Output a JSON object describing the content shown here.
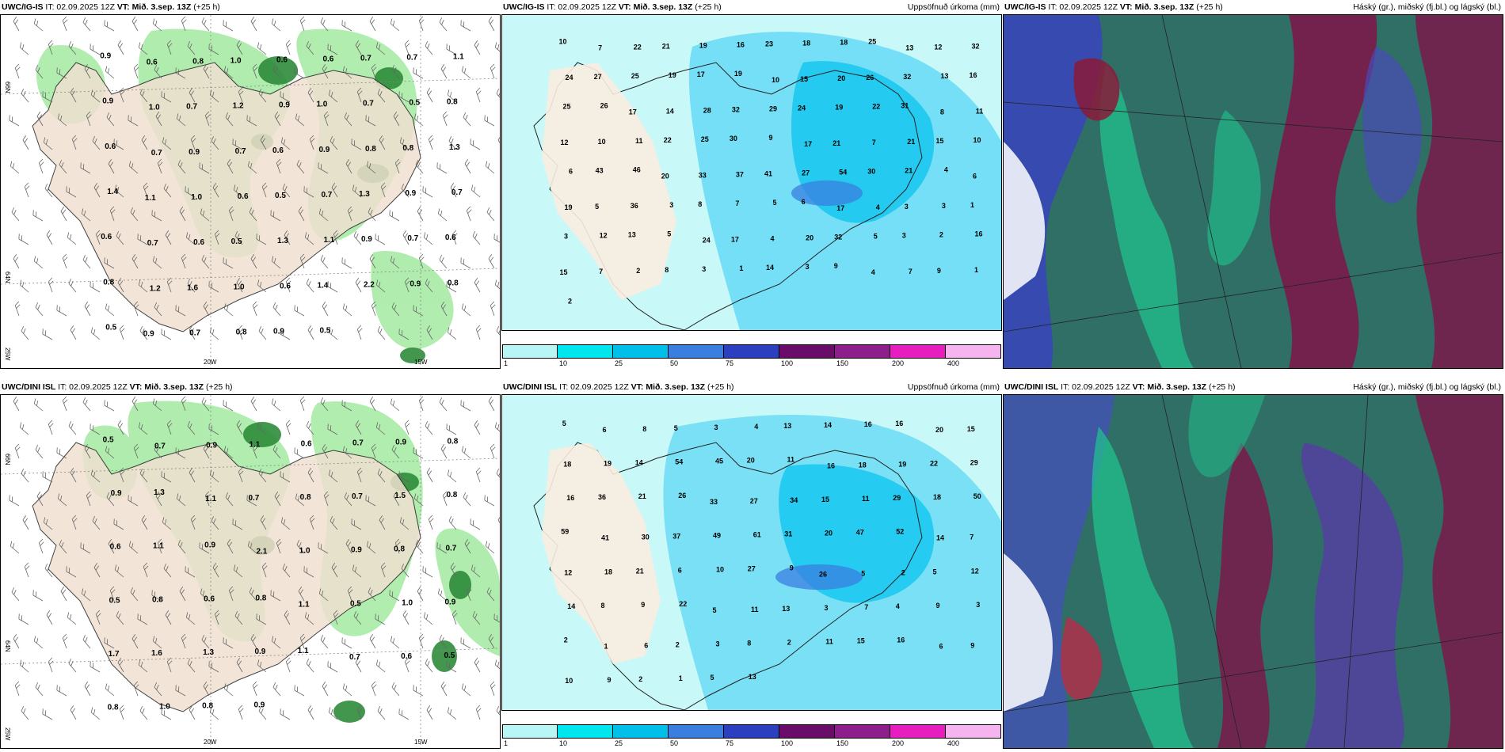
{
  "rows": [
    {
      "model": "UWC/IG-IS",
      "it_text": "IT: 02.09.2025 12Z",
      "vt_label": "VT:",
      "vt_text": "Mið. 3.sep. 13Z",
      "lead": "(+25 h)",
      "precip_title": "Uppsöfnuð úrkoma (mm)",
      "cloud_title": "Háský (gr.), miðský (fj.bl.) og lágský (bl.)",
      "wind_labels": [
        "0.9",
        "0.6",
        "0.8",
        "1.0",
        "0.6",
        "0.6",
        "0.7",
        "0.7",
        "1.1",
        "0.9",
        "1.0",
        "0.7",
        "1.2",
        "0.9",
        "1.0",
        "0.7",
        "0.5",
        "0.8",
        "0.6",
        "0.7",
        "0.9",
        "0.7",
        "0.6",
        "0.9",
        "0.8",
        "0.8",
        "1.3",
        "1.4",
        "1.1",
        "1.0",
        "0.6",
        "0.5",
        "0.7",
        "1.3",
        "0.9",
        "0.7",
        "0.6",
        "0.7",
        "0.6",
        "0.5",
        "1.3",
        "1.1",
        "0.9",
        "0.7",
        "0.6",
        "0.8",
        "1.2",
        "1.6",
        "1.0",
        "0.6",
        "1.4",
        "2.2",
        "0.9",
        "0.8",
        "0.5",
        "0.9",
        "0.7",
        "0.8",
        "0.9",
        "0.5"
      ],
      "precip_labels": [
        "10",
        "7",
        "22",
        "21",
        "19",
        "16",
        "23",
        "18",
        "18",
        "25",
        "13",
        "12",
        "32",
        "24",
        "27",
        "25",
        "19",
        "17",
        "19",
        "10",
        "15",
        "20",
        "26",
        "32",
        "13",
        "16",
        "25",
        "26",
        "17",
        "14",
        "28",
        "32",
        "29",
        "24",
        "19",
        "22",
        "31",
        "8",
        "11",
        "12",
        "10",
        "11",
        "22",
        "25",
        "30",
        "9",
        "17",
        "21",
        "7",
        "21",
        "15",
        "10",
        "6",
        "43",
        "46",
        "20",
        "33",
        "37",
        "41",
        "27",
        "54",
        "30",
        "21",
        "4",
        "6",
        "19",
        "5",
        "36",
        "3",
        "8",
        "7",
        "5",
        "6",
        "17",
        "4",
        "3",
        "3",
        "1",
        "3",
        "12",
        "13",
        "5",
        "24",
        "17",
        "4",
        "20",
        "32",
        "5",
        "3",
        "2",
        "16",
        "15",
        "7",
        "2",
        "8",
        "3",
        "1",
        "14",
        "3",
        "9",
        "4",
        "7",
        "9",
        "1",
        "2"
      ]
    },
    {
      "model": "UWC/DINI ISL",
      "it_text": "IT: 02.09.2025 12Z",
      "vt_label": "VT:",
      "vt_text": "Mið. 3.sep. 13Z",
      "lead": "(+25 h)",
      "precip_title": "Uppsöfnuð úrkoma (mm)",
      "cloud_title": "Háský (gr.), miðský (fj.bl.) og lágský (bl.)",
      "wind_labels": [
        "0.5",
        "0.7",
        "0.9",
        "1.1",
        "0.6",
        "0.7",
        "0.9",
        "0.8",
        "0.9",
        "1.3",
        "1.1",
        "0.7",
        "0.8",
        "0.7",
        "1.5",
        "0.8",
        "0.6",
        "1.1",
        "0.9",
        "2.1",
        "1.0",
        "0.9",
        "0.8",
        "0.7",
        "0.5",
        "0.8",
        "0.6",
        "0.8",
        "1.1",
        "0.5",
        "1.0",
        "0.9",
        "1.7",
        "1.6",
        "1.3",
        "0.9",
        "1.1",
        "0.7",
        "0.6",
        "0.5",
        "0.8",
        "1.0",
        "0.8",
        "0.9"
      ],
      "precip_labels": [
        "5",
        "6",
        "8",
        "5",
        "3",
        "4",
        "13",
        "14",
        "16",
        "16",
        "20",
        "15",
        "18",
        "19",
        "14",
        "54",
        "45",
        "20",
        "11",
        "16",
        "18",
        "19",
        "22",
        "29",
        "16",
        "36",
        "21",
        "26",
        "33",
        "27",
        "34",
        "15",
        "11",
        "29",
        "18",
        "50",
        "59",
        "41",
        "30",
        "37",
        "49",
        "61",
        "31",
        "20",
        "47",
        "52",
        "14",
        "7",
        "12",
        "18",
        "21",
        "6",
        "10",
        "27",
        "9",
        "26",
        "5",
        "2",
        "5",
        "12",
        "14",
        "8",
        "9",
        "22",
        "5",
        "11",
        "13",
        "3",
        "7",
        "4",
        "9",
        "3",
        "2",
        "1",
        "6",
        "2",
        "3",
        "8",
        "2",
        "11",
        "15",
        "16",
        "6",
        "9",
        "10",
        "9",
        "2",
        "1",
        "5",
        "13"
      ]
    }
  ],
  "axis": {
    "lon_20": "20W",
    "lon_15": "15W",
    "lat_66": "66N",
    "lat_64": "64N",
    "lon_25": "25W"
  },
  "colorbar": {
    "ticks": [
      "1",
      "10",
      "25",
      "50",
      "75",
      "100",
      "150",
      "200",
      "400"
    ],
    "colors": [
      "#b8f5f5",
      "#00e5ee",
      "#00bfe8",
      "#3a7fe0",
      "#2c3fc0",
      "#6a0d6a",
      "#8e1e8c",
      "#e61ec0",
      "#f5b4ee"
    ]
  }
}
